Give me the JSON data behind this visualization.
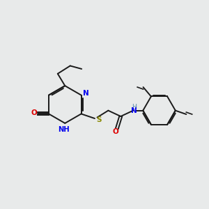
{
  "bg_color": "#e8eaea",
  "bond_color": "#1a1a1a",
  "N_color": "#0000ee",
  "O_color": "#dd0000",
  "S_color": "#888800",
  "H_color": "#5588aa",
  "line_width": 1.4,
  "figsize": [
    3.0,
    3.0
  ],
  "dpi": 100,
  "xlim": [
    0,
    10
  ],
  "ylim": [
    0,
    10
  ]
}
